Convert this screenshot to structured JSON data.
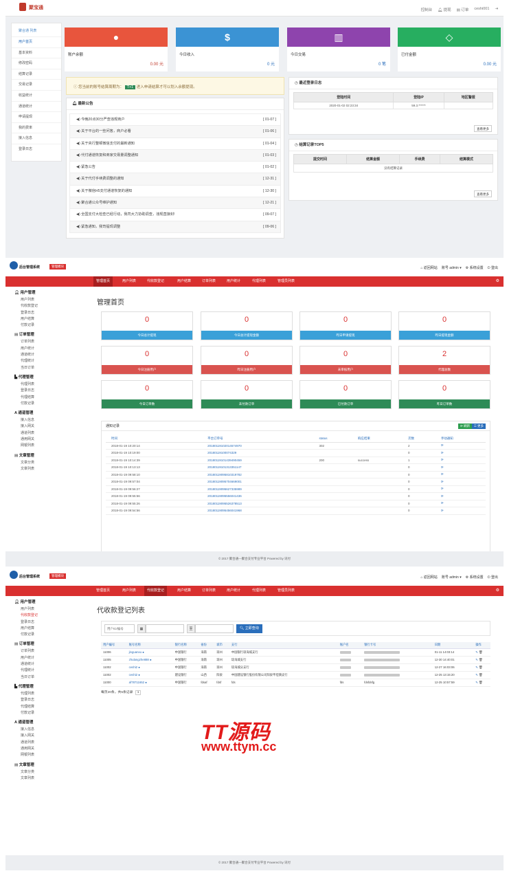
{
  "merchant": {
    "logo_text": "聚宝通",
    "top_links": [
      "控制台",
      "提现",
      "订单",
      "ceshi001"
    ],
    "sidebar_title": "聚合通 列表",
    "sidebar": [
      "用户首页",
      "基本资料",
      "修改密码",
      "结算记录",
      "交易记录",
      "收益统计",
      "通道统计",
      "申请提现",
      "我的费率",
      "接入信息",
      "登录日志"
    ],
    "cards": [
      {
        "label": "账户余额",
        "value": "0.00 元",
        "color": "#e8553d",
        "icon": "user"
      },
      {
        "label": "今日收入",
        "value": "0 元",
        "color": "#3b93d4",
        "icon": "$"
      },
      {
        "label": "今日交易",
        "value": "0 笔",
        "color": "#8e44ad",
        "icon": "chart"
      },
      {
        "label": "已付金额",
        "value": "0.00 元",
        "color": "#27ae60",
        "icon": "diamond"
      }
    ],
    "alert": {
      "pre": "您当前的账号结算周期为：",
      "badge": "T+1",
      "post": "进入申请结算才可以划入余额提现。"
    },
    "notice_title": "最新公告",
    "notices": [
      {
        "t": "今晚20点30分严查违规商户",
        "d": "[ 01-07 ]"
      },
      {
        "t": "关于平台的一些问答，商户必看",
        "d": "[ 01-06 ]"
      },
      {
        "t": "关于央行整顿微信支付的最新通知",
        "d": "[ 01-04 ]"
      },
      {
        "t": "代付通道恢复和商家交易量调整通知",
        "d": "[ 01-03 ]"
      },
      {
        "t": "紧急公告",
        "d": "[ 01-02 ]"
      },
      {
        "t": "关于代付手续费调整的通知",
        "d": "[ 12-31 ]"
      },
      {
        "t": "关于微信H5支付通道恢复的通知",
        "d": "[ 12-30 ]"
      },
      {
        "t": "聚合通公众号维护通知",
        "d": "[ 12-21 ]"
      },
      {
        "t": "全国支付大检查已经行动，我司大力协助调查，违规直接封!",
        "d": "[ 09-07 ]"
      },
      {
        "t": "紧急通知，我司提现调整",
        "d": "[ 09-06 ]"
      }
    ],
    "login_title": "最近登录日志",
    "login_headers": [
      "登陆时间",
      "登陆IP",
      "地区警报"
    ],
    "login_row": [
      "2020-01-02 02:23:34",
      "59.3.******",
      ""
    ],
    "more": "查看更多",
    "settle_title": "结算记录TOP5",
    "settle_headers": [
      "提交时间",
      "结算金额",
      "手续费",
      "结算模式"
    ],
    "settle_empty": "没有结算记录"
  },
  "admin": {
    "title": "后台管理系统",
    "badge": "管理模块",
    "header_links": [
      "返回网站",
      "账号 admin",
      "系统设置",
      "登出"
    ],
    "nav": [
      "管理首页",
      "用户列表",
      "代收款登记",
      "用户结算",
      "订单列表",
      "用户统计",
      "代理列表",
      "管理员列表"
    ],
    "sidebar": [
      {
        "h": "用户管理",
        "items": [
          "用户列表",
          "代收款登记",
          "登录日志",
          "用户结算",
          "付款记录"
        ]
      },
      {
        "h": "订单管理",
        "items": [
          "订单列表",
          "用户统计",
          "通道统计",
          "代理统计",
          "当日订单"
        ]
      },
      {
        "h": "代理管理",
        "items": [
          "代理列表",
          "登录日志",
          "代理结算",
          "付款记录"
        ]
      },
      {
        "h": "通道管理",
        "items": [
          "接入信息",
          "接入网关",
          "通道列表",
          "通用网关",
          "网银列表"
        ]
      },
      {
        "h": "文章管理",
        "items": [
          "文章分类",
          "文章列表"
        ]
      }
    ],
    "home_title": "管理首页",
    "stats": [
      {
        "v": "0",
        "l": "今日总计提现",
        "c": "blue"
      },
      {
        "v": "0",
        "l": "今日总计提现金额",
        "c": "blue"
      },
      {
        "v": "0",
        "l": "昨日申请提现",
        "c": "blue"
      },
      {
        "v": "0",
        "l": "昨日提现金额",
        "c": "blue"
      },
      {
        "v": "0",
        "l": "今日注册用户",
        "c": "red"
      },
      {
        "v": "0",
        "l": "昨日注册用户",
        "c": "red"
      },
      {
        "v": "0",
        "l": "未审核用户",
        "c": "red"
      },
      {
        "v": "2",
        "l": "代理总数",
        "c": "red"
      },
      {
        "v": "0",
        "l": "今日订单数",
        "c": "green"
      },
      {
        "v": "0",
        "l": "未付款订单",
        "c": "green"
      },
      {
        "v": "0",
        "l": "已付款订单",
        "c": "green"
      },
      {
        "v": "0",
        "l": "昨日订单数",
        "c": "green"
      }
    ],
    "notify_title": "通知记录",
    "notify_btns": [
      "刷新",
      "更多"
    ],
    "notify_headers": [
      "时间",
      "平台订单号",
      "status",
      "响应结果",
      "次数",
      "手动通知"
    ],
    "notify_rows": [
      [
        "2018-01-19 10:20:14",
        "20180119102014574970",
        "302",
        "",
        "2"
      ],
      [
        "2018-01-19 10:19:00",
        "20180119100074329",
        "",
        "",
        "0"
      ],
      [
        "2018-01-19 10:14:39",
        "20180119101439490459",
        "200",
        "success",
        "1"
      ],
      [
        "2018-01-19 10:13:13",
        "20180119101313351147",
        "",
        "",
        "0"
      ],
      [
        "2018-01-19 09:58:10",
        "20180119095810319782",
        "",
        "",
        "0"
      ],
      [
        "2018-01-19 09:57:04",
        "20180119095704669001",
        "",
        "",
        "0"
      ],
      [
        "2018-01-19 09:56:27",
        "20180119095627335989",
        "",
        "",
        "0"
      ],
      [
        "2018-01-19 09:55:56",
        "20180119095556041436",
        "",
        "",
        "0"
      ],
      [
        "2018-01-19 09:55:26",
        "20180119095526378513",
        "",
        "",
        "0"
      ],
      [
        "2018-01-19 09:54:56",
        "20180119095456041968",
        "",
        "",
        "0"
      ]
    ],
    "footer": "© 2017 聚合通—聚合支付专业平台 Powered by 讯付",
    "reg_title": "代收款登记列表",
    "search": {
      "placeholder": "用户ID/编号",
      "to": "至",
      "btn": "立即查询"
    },
    "reg_headers": [
      "用户编号",
      "账号名称",
      "银行名称",
      "省份",
      "城市",
      "支行",
      "账户名",
      "银行卡号",
      "日期",
      "操作"
    ],
    "reg_rows": [
      [
        "11006",
        "jinguanxu",
        "中国银行",
        "海南",
        "琼州",
        "中国银行琼海城支行",
        "",
        "",
        "01-11 14:03:14"
      ],
      [
        "11005",
        "zhulangzhe888",
        "中国银行",
        "海南",
        "琼州",
        "琼海城支行",
        "",
        "",
        "12-30 14:40:01"
      ],
      [
        "11002",
        "ceshi2",
        "中国银行",
        "海南",
        "琼州",
        "琼海城分支行",
        "",
        "",
        "12-27 16:03:06"
      ],
      [
        "11002",
        "ceshi2",
        "建设银行",
        "山西",
        "阳泉",
        "中国建设银行股份有限公司阳泉平坦镇支行",
        "",
        "",
        "12-25 13:15:20"
      ],
      [
        "11000",
        "af78711652",
        "中国银行",
        "fdsaf",
        "fdsf",
        "fds",
        "fds",
        "fdsfdsfg",
        "12-25 10:57:59"
      ]
    ],
    "pager_text": "每页20条，共5条记录",
    "pager_page": "1"
  },
  "watermark": {
    "line1": "TT源码",
    "line2": "www.ttym.cc"
  }
}
